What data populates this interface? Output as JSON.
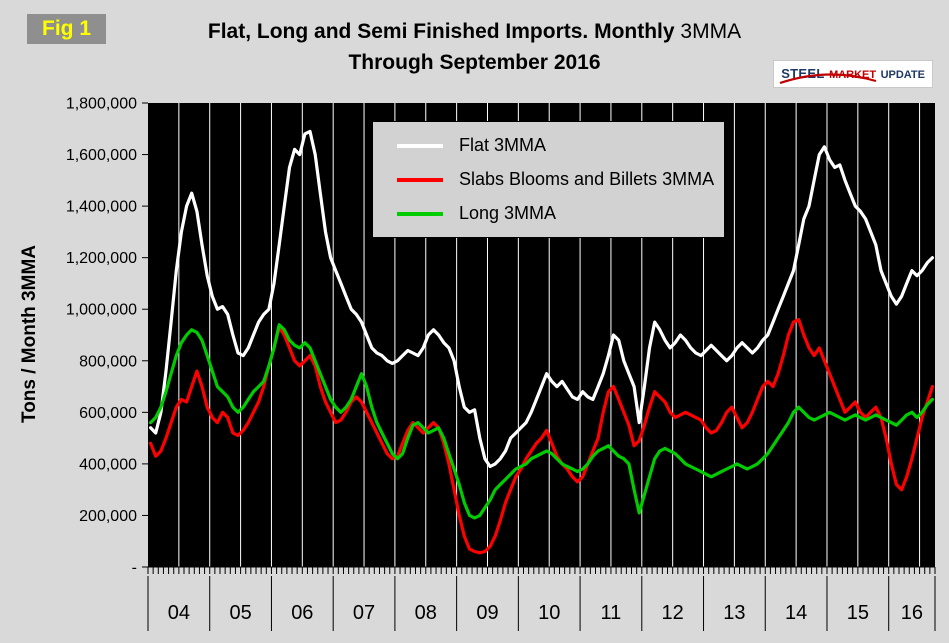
{
  "fig_label": "Fig 1",
  "title": {
    "line1_bold": "Flat, Long and Semi Finished Imports. Monthly",
    "line1_regular": "3MMA",
    "line2": "Through September 2016"
  },
  "logo": {
    "steel": "STEEL",
    "market": "MARKET",
    "update": "UPDATE"
  },
  "y_axis": {
    "label": "Tons / Month 3MMA",
    "ticks": [
      "1,800,000",
      "1,600,000",
      "1,400,000",
      "1,200,000",
      "1,000,000",
      "800,000",
      "600,000",
      "400,000",
      "200,000",
      "-"
    ]
  },
  "x_axis": {
    "years": [
      "04",
      "05",
      "06",
      "07",
      "08",
      "09",
      "10",
      "11",
      "12",
      "13",
      "14",
      "15",
      "16"
    ]
  },
  "chart_data": {
    "type": "line",
    "title": "Flat, Long and Semi Finished Imports. Monthly 3MMA Through September 2016",
    "ylabel": "Tons / Month 3MMA",
    "ylim": [
      0,
      1800000
    ],
    "x_unit": "month",
    "x_start": "2004-01",
    "x_end": "2016-09",
    "plot_bg": "#000000",
    "gridlines": "vertical-semiannual",
    "legend_position": "top-center-inside",
    "series": [
      {
        "name": "Flat 3MMA",
        "color": "#ffffff",
        "values": [
          540000,
          520000,
          600000,
          760000,
          950000,
          1150000,
          1300000,
          1400000,
          1450000,
          1380000,
          1250000,
          1130000,
          1050000,
          1000000,
          1010000,
          980000,
          900000,
          830000,
          820000,
          850000,
          900000,
          950000,
          980000,
          1000000,
          1100000,
          1250000,
          1400000,
          1550000,
          1620000,
          1600000,
          1680000,
          1690000,
          1600000,
          1450000,
          1300000,
          1200000,
          1150000,
          1100000,
          1050000,
          1000000,
          980000,
          950000,
          900000,
          850000,
          830000,
          820000,
          800000,
          790000,
          800000,
          820000,
          840000,
          830000,
          820000,
          850000,
          900000,
          920000,
          900000,
          870000,
          850000,
          800000,
          700000,
          620000,
          600000,
          610000,
          500000,
          420000,
          390000,
          400000,
          420000,
          450000,
          500000,
          520000,
          540000,
          560000,
          600000,
          650000,
          700000,
          750000,
          720000,
          700000,
          720000,
          690000,
          660000,
          650000,
          680000,
          660000,
          650000,
          700000,
          750000,
          820000,
          900000,
          880000,
          800000,
          750000,
          700000,
          560000,
          700000,
          850000,
          950000,
          920000,
          880000,
          850000,
          870000,
          900000,
          880000,
          850000,
          830000,
          820000,
          840000,
          860000,
          840000,
          820000,
          800000,
          820000,
          850000,
          870000,
          850000,
          830000,
          850000,
          880000,
          900000,
          950000,
          1000000,
          1050000,
          1100000,
          1150000,
          1250000,
          1350000,
          1400000,
          1500000,
          1600000,
          1630000,
          1580000,
          1550000,
          1560000,
          1500000,
          1450000,
          1400000,
          1380000,
          1350000,
          1300000,
          1250000,
          1150000,
          1100000,
          1050000,
          1020000,
          1050000,
          1100000,
          1150000,
          1130000,
          1150000,
          1180000,
          1200000
        ]
      },
      {
        "name": "Slabs Blooms and Billets 3MMA",
        "color": "#ff0000",
        "values": [
          480000,
          430000,
          450000,
          500000,
          560000,
          620000,
          650000,
          640000,
          700000,
          760000,
          700000,
          620000,
          580000,
          560000,
          600000,
          580000,
          520000,
          510000,
          530000,
          560000,
          600000,
          640000,
          700000,
          780000,
          850000,
          930000,
          900000,
          850000,
          800000,
          780000,
          800000,
          820000,
          780000,
          700000,
          640000,
          600000,
          560000,
          570000,
          600000,
          640000,
          660000,
          640000,
          600000,
          560000,
          520000,
          480000,
          440000,
          420000,
          430000,
          480000,
          530000,
          560000,
          540000,
          520000,
          540000,
          560000,
          540000,
          480000,
          400000,
          300000,
          200000,
          120000,
          70000,
          60000,
          55000,
          60000,
          80000,
          120000,
          180000,
          250000,
          300000,
          350000,
          380000,
          420000,
          450000,
          480000,
          500000,
          530000,
          480000,
          430000,
          400000,
          380000,
          350000,
          330000,
          350000,
          400000,
          450000,
          500000,
          600000,
          680000,
          700000,
          650000,
          600000,
          550000,
          470000,
          490000,
          550000,
          620000,
          680000,
          660000,
          640000,
          600000,
          580000,
          590000,
          600000,
          590000,
          580000,
          570000,
          540000,
          520000,
          530000,
          560000,
          600000,
          620000,
          580000,
          540000,
          560000,
          600000,
          650000,
          700000,
          720000,
          700000,
          750000,
          820000,
          900000,
          950000,
          960000,
          900000,
          850000,
          820000,
          850000,
          800000,
          750000,
          700000,
          650000,
          600000,
          620000,
          640000,
          600000,
          580000,
          600000,
          620000,
          580000,
          500000,
          400000,
          320000,
          300000,
          350000,
          420000,
          500000,
          580000,
          640000,
          700000
        ]
      },
      {
        "name": "Long 3MMA",
        "color": "#00cc00",
        "values": [
          560000,
          580000,
          620000,
          680000,
          750000,
          820000,
          870000,
          900000,
          920000,
          910000,
          880000,
          820000,
          760000,
          700000,
          680000,
          660000,
          620000,
          600000,
          620000,
          650000,
          680000,
          700000,
          720000,
          780000,
          850000,
          940000,
          920000,
          880000,
          860000,
          850000,
          870000,
          850000,
          800000,
          750000,
          700000,
          650000,
          620000,
          600000,
          620000,
          650000,
          700000,
          750000,
          700000,
          620000,
          560000,
          520000,
          480000,
          440000,
          420000,
          440000,
          500000,
          550000,
          560000,
          540000,
          520000,
          530000,
          540000,
          500000,
          440000,
          380000,
          320000,
          250000,
          200000,
          190000,
          200000,
          230000,
          260000,
          300000,
          320000,
          340000,
          360000,
          380000,
          390000,
          400000,
          420000,
          430000,
          440000,
          450000,
          440000,
          420000,
          400000,
          390000,
          380000,
          370000,
          380000,
          400000,
          430000,
          450000,
          460000,
          470000,
          450000,
          430000,
          420000,
          400000,
          300000,
          210000,
          280000,
          350000,
          420000,
          450000,
          460000,
          450000,
          440000,
          420000,
          400000,
          390000,
          380000,
          370000,
          360000,
          350000,
          360000,
          370000,
          380000,
          390000,
          400000,
          390000,
          380000,
          390000,
          400000,
          420000,
          440000,
          470000,
          500000,
          530000,
          560000,
          600000,
          620000,
          600000,
          580000,
          570000,
          580000,
          590000,
          600000,
          590000,
          580000,
          570000,
          580000,
          590000,
          580000,
          570000,
          580000,
          590000,
          580000,
          570000,
          560000,
          550000,
          570000,
          590000,
          600000,
          580000,
          600000,
          630000,
          650000
        ]
      }
    ]
  }
}
